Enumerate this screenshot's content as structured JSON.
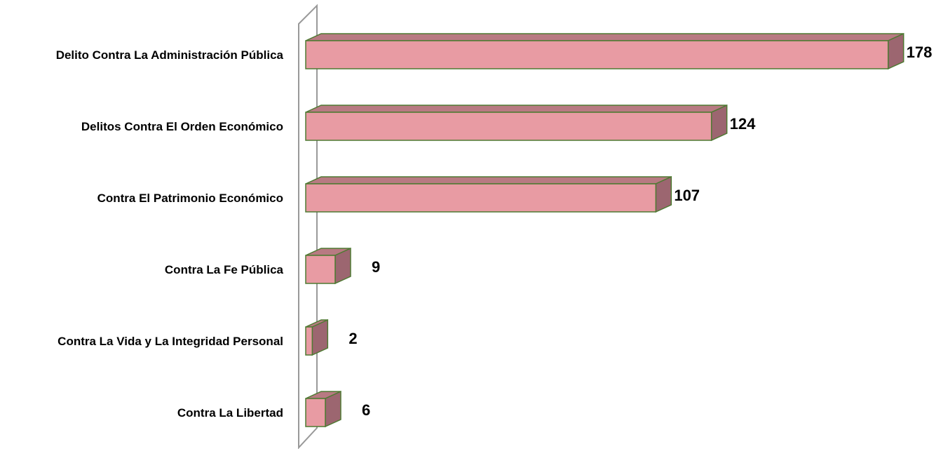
{
  "chart_data": {
    "type": "bar",
    "orientation": "horizontal",
    "style": "3d",
    "categories": [
      "Delito Contra La Administración Pública",
      "Delitos Contra El Orden Económico",
      "Contra El Patrimonio Económico",
      "Contra La Fe Pública",
      "Contra La Vida y La Integridad Personal",
      "Contra La Libertad"
    ],
    "values": [
      178,
      124,
      107,
      9,
      2,
      6
    ],
    "data_labels": [
      "178",
      "124",
      "107",
      "9",
      "2",
      "6"
    ],
    "xlim": [
      0,
      180
    ],
    "grid": false,
    "legend": "none",
    "colors": {
      "bar_front": "#e89ba3",
      "bar_top": "#b87a82",
      "bar_side": "#9c6670",
      "bar_outline": "#4e7a32",
      "axis_wall": "#999999"
    }
  }
}
